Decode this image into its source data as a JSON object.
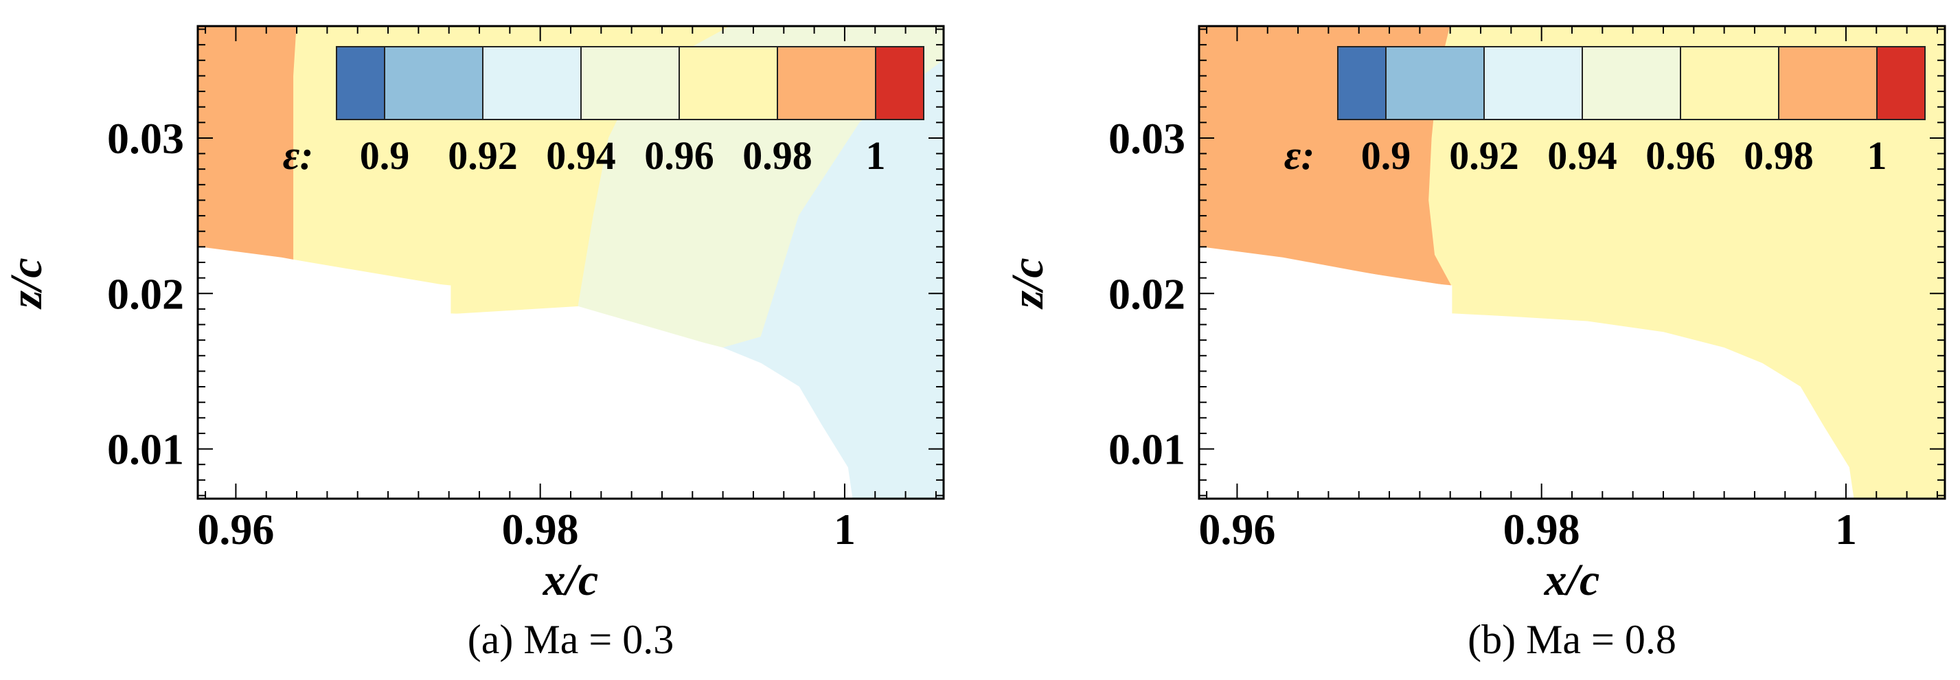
{
  "chart_data": [
    {
      "type": "heatmap",
      "caption": "(a) Ma = 0.3",
      "xlabel": "x/c",
      "ylabel": "z/c",
      "xlim": [
        0.9575,
        1.0065
      ],
      "ylim": [
        0.0068,
        0.0372
      ],
      "x_ticks": [
        0.96,
        0.98,
        1.0
      ],
      "x_tick_labels": [
        "0.96",
        "0.98",
        "1"
      ],
      "y_ticks": [
        0.01,
        0.02,
        0.03
      ],
      "y_tick_labels": [
        "0.01",
        "0.02",
        "0.03"
      ],
      "legend": {
        "title": "ε:",
        "levels": [
          0.9,
          0.92,
          0.94,
          0.96,
          0.98,
          1.0
        ],
        "level_labels": [
          "0.9",
          "0.92",
          "0.94",
          "0.96",
          "0.98",
          "1"
        ],
        "colors": [
          "#4575b4",
          "#91bfdb",
          "#e0f3f8",
          "#f1f8dc",
          "#fff7b2",
          "#fdb173",
          "#d73027"
        ]
      },
      "regions": [
        {
          "color": "#fdb173",
          "points": [
            [
              0.9575,
              0.0372
            ],
            [
              0.964,
              0.0372
            ],
            [
              0.9638,
              0.034
            ],
            [
              0.9638,
              0.0222
            ],
            [
              0.9575,
              0.023
            ]
          ]
        },
        {
          "color": "#fff7b2",
          "points": [
            [
              0.964,
              0.0372
            ],
            [
              0.9925,
              0.0372
            ],
            [
              0.9865,
              0.034
            ],
            [
              0.9845,
              0.03
            ],
            [
              0.9835,
              0.025
            ],
            [
              0.9825,
              0.0192
            ],
            [
              0.9741,
              0.0187
            ],
            [
              0.9741,
              0.0205
            ],
            [
              0.9638,
              0.0222
            ],
            [
              0.9638,
              0.034
            ]
          ]
        },
        {
          "color": "#f1f8dc",
          "points": [
            [
              0.9925,
              0.0372
            ],
            [
              1.0065,
              0.0372
            ],
            [
              1.0065,
              0.035
            ],
            [
              1.001,
              0.031
            ],
            [
              0.997,
              0.025
            ],
            [
              0.9945,
              0.0172
            ],
            [
              0.992,
              0.0165
            ],
            [
              0.9825,
              0.0192
            ],
            [
              0.9835,
              0.025
            ],
            [
              0.9845,
              0.03
            ],
            [
              0.9865,
              0.034
            ]
          ]
        },
        {
          "color": "#e0f3f8",
          "points": [
            [
              1.0065,
              0.035
            ],
            [
              1.0065,
              0.0068
            ],
            [
              1.0005,
              0.0068
            ],
            [
              1.0002,
              0.0088
            ],
            [
              0.9985,
              0.0115
            ],
            [
              0.997,
              0.014
            ],
            [
              0.9945,
              0.0155
            ],
            [
              0.992,
              0.0165
            ],
            [
              0.9945,
              0.0172
            ],
            [
              0.997,
              0.025
            ],
            [
              1.001,
              0.031
            ]
          ]
        }
      ]
    },
    {
      "type": "heatmap",
      "caption": "(b) Ma = 0.8",
      "xlabel": "x/c",
      "ylabel": "z/c",
      "xlim": [
        0.9575,
        1.0065
      ],
      "ylim": [
        0.0068,
        0.0372
      ],
      "x_ticks": [
        0.96,
        0.98,
        1.0
      ],
      "x_tick_labels": [
        "0.96",
        "0.98",
        "1"
      ],
      "y_ticks": [
        0.01,
        0.02,
        0.03
      ],
      "y_tick_labels": [
        "0.01",
        "0.02",
        "0.03"
      ],
      "legend": {
        "title": "ε:",
        "levels": [
          0.9,
          0.92,
          0.94,
          0.96,
          0.98,
          1.0
        ],
        "level_labels": [
          "0.9",
          "0.92",
          "0.94",
          "0.96",
          "0.98",
          "1"
        ],
        "colors": [
          "#4575b4",
          "#91bfdb",
          "#e0f3f8",
          "#f1f8dc",
          "#fff7b2",
          "#fdb173",
          "#d73027"
        ]
      },
      "regions": [
        {
          "color": "#fdb173",
          "points": [
            [
              0.9575,
              0.0372
            ],
            [
              0.974,
              0.0372
            ],
            [
              0.9732,
              0.034
            ],
            [
              0.9728,
              0.03
            ],
            [
              0.9726,
              0.026
            ],
            [
              0.973,
              0.0225
            ],
            [
              0.9741,
              0.0205
            ],
            [
              0.9575,
              0.023
            ]
          ]
        },
        {
          "color": "#fff7b2",
          "points": [
            [
              0.974,
              0.0372
            ],
            [
              1.0065,
              0.0372
            ],
            [
              1.0065,
              0.0068
            ],
            [
              1.0005,
              0.0068
            ],
            [
              1.0002,
              0.0088
            ],
            [
              0.9985,
              0.0115
            ],
            [
              0.997,
              0.014
            ],
            [
              0.9945,
              0.0155
            ],
            [
              0.992,
              0.0165
            ],
            [
              0.988,
              0.0175
            ],
            [
              0.983,
              0.0182
            ],
            [
              0.978,
              0.0185
            ],
            [
              0.9741,
              0.0187
            ],
            [
              0.9741,
              0.0205
            ],
            [
              0.973,
              0.0225
            ],
            [
              0.9726,
              0.026
            ],
            [
              0.9728,
              0.03
            ],
            [
              0.9732,
              0.034
            ]
          ]
        }
      ]
    }
  ]
}
